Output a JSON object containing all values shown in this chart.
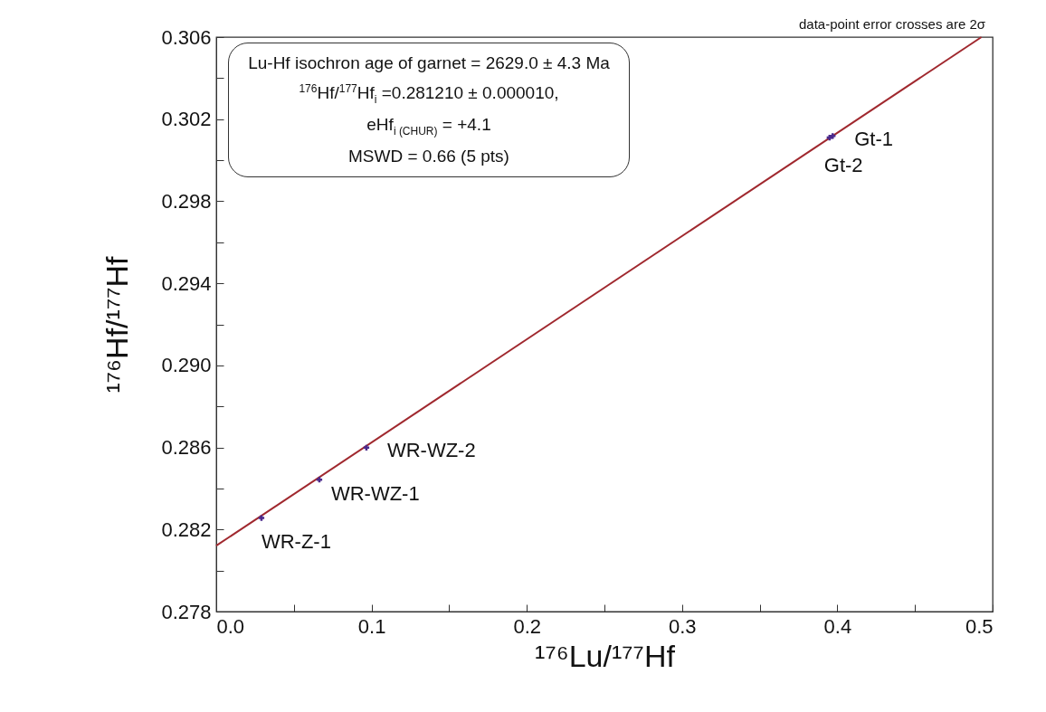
{
  "chart_data": {
    "type": "scatter",
    "xlabel": "¹⁷⁶Lu/¹⁷⁷Hf",
    "ylabel": "¹⁷⁶Hf/¹⁷⁷Hf",
    "xlim": [
      0,
      0.5
    ],
    "ylim": [
      0.278,
      0.306
    ],
    "xticks": [
      {
        "value": 0,
        "label": "0.0"
      },
      {
        "value": 0.05,
        "label": null
      },
      {
        "value": 0.1,
        "label": "0.1"
      },
      {
        "value": 0.15,
        "label": null
      },
      {
        "value": 0.2,
        "label": "0.2"
      },
      {
        "value": 0.25,
        "label": null
      },
      {
        "value": 0.3,
        "label": "0.3"
      },
      {
        "value": 0.35,
        "label": null
      },
      {
        "value": 0.4,
        "label": "0.4"
      },
      {
        "value": 0.45,
        "label": null
      },
      {
        "value": 0.5,
        "label": "0.5"
      }
    ],
    "yticks": [
      0.278,
      {
        "value": 0.28,
        "label": null
      },
      0.282,
      {
        "value": 0.284,
        "label": null
      },
      0.286,
      {
        "value": 0.288,
        "label": null
      },
      {
        "value": 0.29,
        "label": "0.290"
      },
      {
        "value": 0.292,
        "label": null
      },
      0.294,
      {
        "value": 0.296,
        "label": null
      },
      0.298,
      {
        "value": 0.3,
        "label": null
      },
      0.302,
      {
        "value": 0.304,
        "label": null
      },
      0.306
    ],
    "grid": false,
    "marker": "cross",
    "series": [
      {
        "type": "line",
        "marker": "none",
        "color": "#a0282e",
        "x": [
          0,
          0.4928
        ],
        "values": [
          0.28121,
          0.306
        ]
      },
      {
        "color": "#4b2a8c",
        "x": [
          0.0291,
          0.0664,
          0.0967,
          0.397,
          0.395
        ],
        "values": [
          0.28256,
          0.28443,
          0.28599,
          0.30118,
          0.3011
        ]
      }
    ],
    "annotations": [
      "Lu-Hf isochron age of garnet = 2629.0 ± 4.3 Ma\n$^{176}$Hf/$^{177}$Hf$_{i}$ =0.281210 ± 0.000010,\neHf$_{i (CHUR)}$ = +4.1\nMSWD = 0.66 (5 pts)",
      "data-point error crosses are 2σ",
      {
        "text": "WR-Z-1",
        "x": 0.0291,
        "y": 0.28256
      },
      {
        "text": "WR-WZ-1",
        "x": 0.0664,
        "y": 0.28443
      },
      {
        "text": "WR-WZ-2",
        "x": 0.0967,
        "y": 0.28599
      },
      {
        "text": "Gt-1",
        "x": 0.397,
        "y": 0.30118
      },
      {
        "text": "Gt-2",
        "x": 0.395,
        "y": 0.3011
      }
    ]
  }
}
